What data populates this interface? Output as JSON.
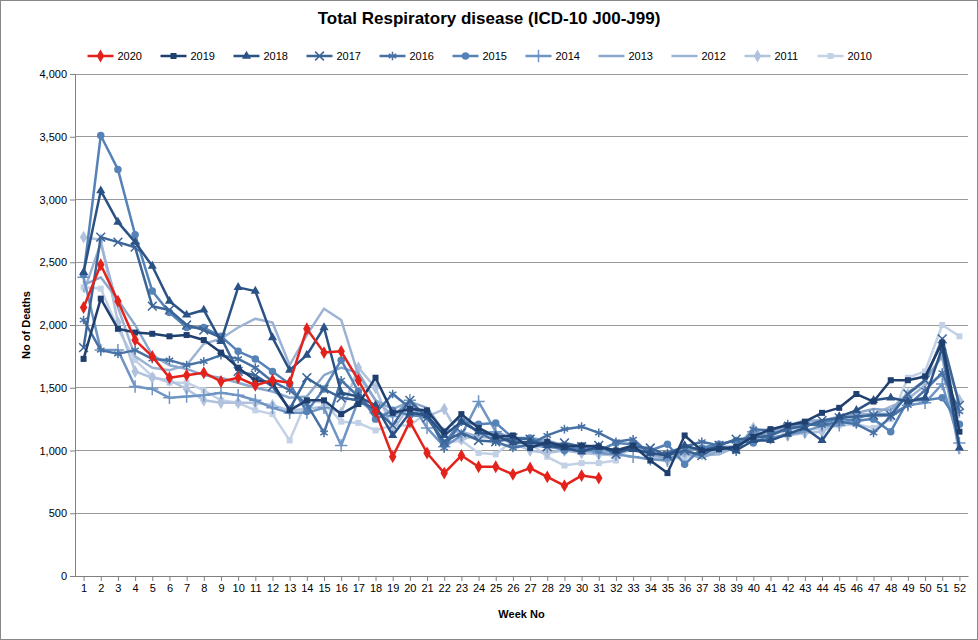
{
  "chart_data": {
    "type": "line",
    "title": "Total Respiratory disease (ICD-10 J00-J99)",
    "x_label": "Week No",
    "y_label": "No of Deaths",
    "x": [
      1,
      2,
      3,
      4,
      5,
      6,
      7,
      8,
      9,
      10,
      11,
      12,
      13,
      14,
      15,
      16,
      17,
      18,
      19,
      20,
      21,
      22,
      23,
      24,
      25,
      26,
      27,
      28,
      29,
      30,
      31,
      32,
      33,
      34,
      35,
      36,
      37,
      38,
      39,
      40,
      41,
      42,
      43,
      44,
      45,
      46,
      47,
      48,
      49,
      50,
      51,
      52
    ],
    "xlim": [
      0.5,
      52.5
    ],
    "xticks": [
      1,
      2,
      3,
      4,
      5,
      6,
      7,
      8,
      9,
      10,
      11,
      12,
      13,
      14,
      15,
      16,
      17,
      18,
      19,
      20,
      21,
      22,
      23,
      24,
      25,
      26,
      27,
      28,
      29,
      30,
      31,
      32,
      33,
      34,
      35,
      36,
      37,
      38,
      39,
      40,
      41,
      42,
      43,
      44,
      45,
      46,
      47,
      48,
      49,
      50,
      51,
      52
    ],
    "ylim": [
      0,
      4000
    ],
    "yticks": [
      0,
      500,
      {
        "value": 1000,
        "label": "1,000"
      },
      {
        "value": 1500,
        "label": "1,500"
      },
      {
        "value": 2000,
        "label": "2,000"
      },
      {
        "value": 2500,
        "label": "2,500"
      },
      {
        "value": 3000,
        "label": "3,000"
      },
      {
        "value": 3500,
        "label": "3,500"
      },
      {
        "value": 4000,
        "label": "4,000"
      }
    ],
    "grid": true,
    "legend": "top",
    "series": [
      {
        "name": "2020",
        "color": "#e3221c",
        "marker": "diamond",
        "values": [
          2140,
          2480,
          2190,
          1880,
          1750,
          1580,
          1600,
          1620,
          1550,
          1580,
          1520,
          1560,
          1540,
          1970,
          1780,
          1790,
          1560,
          1310,
          950,
          1230,
          980,
          820,
          960,
          870,
          870,
          810,
          860,
          790,
          720,
          800,
          780,
          null,
          null,
          null,
          null,
          null,
          null,
          null,
          null,
          null,
          null,
          null,
          null,
          null,
          null,
          null,
          null,
          null,
          null,
          null,
          null,
          null
        ]
      },
      {
        "name": "2019",
        "color": "#1f3f6e",
        "marker": "square",
        "values": [
          1730,
          2210,
          1970,
          1940,
          1930,
          1910,
          1920,
          1880,
          1780,
          1660,
          1560,
          1540,
          1320,
          1400,
          1400,
          1290,
          1370,
          1580,
          1300,
          1330,
          1320,
          1150,
          1290,
          1180,
          1110,
          1120,
          1020,
          1070,
          1030,
          1040,
          1030,
          1000,
          1040,
          920,
          820,
          1120,
          1000,
          1010,
          1030,
          1110,
          1170,
          1200,
          1230,
          1300,
          1340,
          1450,
          1390,
          1560,
          1560,
          1590,
          1860,
          1150
        ]
      },
      {
        "name": "2018",
        "color": "#2b5285",
        "marker": "triangle",
        "values": [
          2420,
          3070,
          2820,
          2660,
          2470,
          2190,
          2080,
          2120,
          1870,
          2300,
          2270,
          1900,
          1640,
          1760,
          1980,
          1460,
          1430,
          1360,
          1120,
          1300,
          1280,
          1120,
          1230,
          1150,
          1120,
          1060,
          1070,
          1040,
          1020,
          990,
          1030,
          1000,
          1010,
          980,
          960,
          1040,
          1000,
          1030,
          1000,
          1080,
          1080,
          1130,
          1180,
          1080,
          1270,
          1320,
          1400,
          1420,
          1390,
          1420,
          1820,
          1020
        ]
      },
      {
        "name": "2017",
        "color": "#3b6497",
        "marker": "x",
        "values": [
          1820,
          2700,
          2660,
          2620,
          2150,
          2120,
          2000,
          1960,
          1900,
          1630,
          1600,
          1510,
          1330,
          1580,
          1490,
          1420,
          1400,
          1330,
          1200,
          1400,
          1260,
          1070,
          1140,
          1080,
          1070,
          1100,
          1090,
          1030,
          1060,
          1030,
          1040,
          970,
          1030,
          1020,
          960,
          1000,
          960,
          1040,
          1090,
          1100,
          1120,
          1180,
          1190,
          1240,
          1260,
          1270,
          1280,
          1280,
          1450,
          1560,
          1890,
          1360
        ]
      },
      {
        "name": "2016",
        "color": "#4872a6",
        "marker": "star",
        "values": [
          2040,
          1800,
          1770,
          1800,
          1730,
          1720,
          1680,
          1710,
          1760,
          1730,
          1660,
          1550,
          1480,
          1370,
          1140,
          1560,
          1430,
          1300,
          1450,
          1340,
          1300,
          1020,
          1230,
          1150,
          1070,
          1020,
          1050,
          1120,
          1170,
          1190,
          1140,
          1070,
          1090,
          970,
          980,
          1030,
          1070,
          1040,
          990,
          1170,
          1160,
          1210,
          1210,
          1200,
          1230,
          1210,
          1140,
          1270,
          1360,
          1480,
          1620,
          1310
        ]
      },
      {
        "name": "2015",
        "color": "#5683b7",
        "marker": "circle",
        "values": [
          2400,
          3510,
          3240,
          2720,
          2270,
          2100,
          1980,
          1980,
          1910,
          1790,
          1730,
          1630,
          1530,
          1310,
          1490,
          1720,
          1470,
          1250,
          1320,
          1280,
          1270,
          1060,
          1230,
          1210,
          1220,
          1100,
          1100,
          1050,
          1000,
          1030,
          1000,
          1060,
          1050,
          1000,
          1050,
          890,
          1020,
          1050,
          1080,
          1060,
          1120,
          1170,
          1200,
          1220,
          1250,
          1240,
          1250,
          1150,
          1400,
          1400,
          1420,
          1210
        ]
      },
      {
        "name": "2014",
        "color": "#6f95c4",
        "marker": "plus",
        "values": [
          2380,
          1800,
          1800,
          1510,
          1490,
          1420,
          1430,
          1440,
          1460,
          1440,
          1400,
          1340,
          1300,
          1300,
          1340,
          1040,
          1400,
          1300,
          1270,
          1400,
          1180,
          1030,
          1120,
          1390,
          1150,
          1090,
          1040,
          1030,
          1010,
          1020,
          980,
          970,
          950,
          930,
          920,
          1000,
          1030,
          1030,
          1030,
          1150,
          1100,
          1130,
          1150,
          1200,
          1200,
          1260,
          1290,
          1290,
          1360,
          1380,
          1530,
          1060
        ]
      },
      {
        "name": "2013",
        "color": "#8aa7cc",
        "marker": "none",
        "values": [
          2320,
          2380,
          2200,
          2000,
          1760,
          1680,
          1650,
          1600,
          1580,
          1540,
          1500,
          1470,
          1420,
          1430,
          1600,
          1660,
          1620,
          1400,
          1330,
          1390,
          1340,
          1150,
          1280,
          1130,
          1150,
          1080,
          1100,
          1080,
          1040,
          1020,
          1010,
          990,
          1000,
          990,
          930,
          980,
          940,
          1000,
          1020,
          1120,
          1150,
          1200,
          1240,
          1240,
          1270,
          1300,
          1330,
          1320,
          1460,
          1560,
          1750,
          970
        ]
      },
      {
        "name": "2012",
        "color": "#9db3d3",
        "marker": "none",
        "values": [
          2260,
          2650,
          2140,
          1750,
          1660,
          1640,
          1680,
          1850,
          1890,
          1980,
          2050,
          2020,
          1680,
          1920,
          2130,
          2040,
          1600,
          1400,
          1280,
          1330,
          1250,
          1170,
          1150,
          1110,
          1100,
          1080,
          1060,
          1050,
          1000,
          990,
          990,
          1000,
          1000,
          970,
          930,
          980,
          960,
          970,
          1030,
          1120,
          1130,
          1180,
          1230,
          1240,
          1250,
          1290,
          1290,
          1350,
          1410,
          1520,
          1600,
          1260
        ]
      },
      {
        "name": "2011",
        "color": "#b0c2dd",
        "marker": "diamond",
        "values": [
          2700,
          2680,
          2020,
          1630,
          1580,
          1560,
          1490,
          1400,
          1380,
          1380,
          1380,
          1360,
          1320,
          1330,
          1350,
          1300,
          1660,
          1500,
          1160,
          1360,
          1270,
          1330,
          1090,
          1120,
          1100,
          1060,
          1000,
          980,
          1000,
          980,
          970,
          960,
          1050,
          960,
          920,
          970,
          970,
          1010,
          1020,
          1180,
          1100,
          1120,
          1140,
          1150,
          1230,
          1220,
          1270,
          1280,
          1450,
          1550,
          1760,
          1400
        ]
      },
      {
        "name": "2010",
        "color": "#c3d1e6",
        "marker": "square",
        "values": [
          2300,
          2290,
          1970,
          1720,
          1590,
          1540,
          1540,
          1480,
          1400,
          1380,
          1320,
          1290,
          1080,
          1400,
          1380,
          1230,
          1220,
          1160,
          1200,
          1200,
          1300,
          1060,
          1080,
          980,
          970,
          1080,
          1060,
          950,
          880,
          900,
          900,
          920,
          1050,
          980,
          940,
          940,
          980,
          990,
          1020,
          1170,
          1150,
          1160,
          1170,
          1170,
          1200,
          1210,
          1180,
          1250,
          1580,
          1630,
          2000,
          1910
        ]
      }
    ]
  }
}
